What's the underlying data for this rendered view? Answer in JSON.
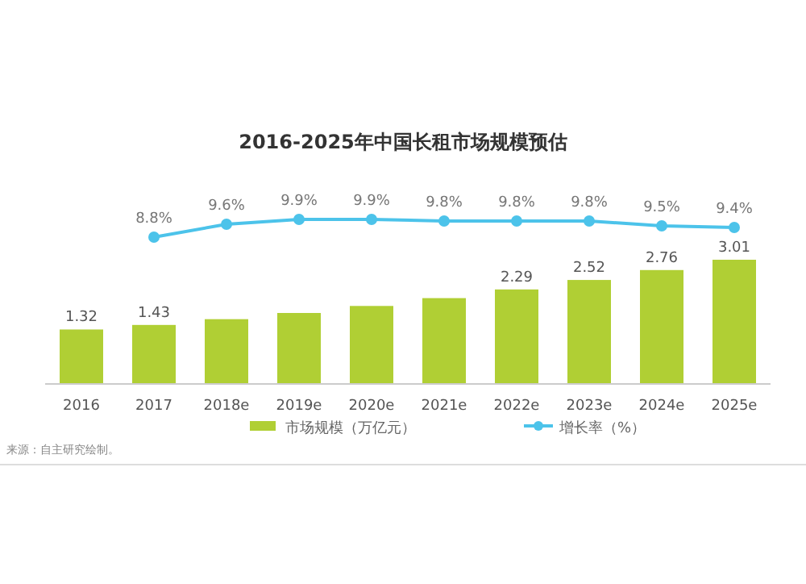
{
  "chart_data": [
    {
      "type": "bar",
      "categories": [
        "2016",
        "2017",
        "2018e",
        "2019e",
        "2020e",
        "2021e",
        "2022e",
        "2023e",
        "2024e",
        "2025e"
      ],
      "series": [
        {
          "name": "市场规模（万亿元）",
          "color": "#b0cf34",
          "values": [
            1.32,
            1.43,
            1.57,
            1.72,
            1.89,
            2.08,
            2.29,
            2.52,
            2.76,
            3.01
          ],
          "value_labels": [
            "1.32",
            "1.43",
            null,
            null,
            null,
            null,
            "2.29",
            "2.52",
            "2.76",
            "3.01"
          ]
        }
      ],
      "legend": "bottom",
      "annotations": [
        "来源：自主研究绘制。"
      ]
    },
    {
      "type": "line",
      "title": "2016-2025年中国长租市场规模预估",
      "categories": [
        null,
        null,
        null,
        null,
        null,
        null,
        null,
        null,
        null,
        null
      ],
      "series": [
        {
          "name": "增长率（%）",
          "color": "#4cc3ea",
          "values": [
            null,
            8.8,
            9.6,
            9.9,
            9.9,
            9.8,
            9.8,
            9.8,
            9.5,
            9.4
          ],
          "value_labels": [
            null,
            "8.8%",
            "9.6%",
            "9.9%",
            "9.9%",
            "9.8%",
            "9.8%",
            "9.8%",
            "9.5%",
            "9.4%"
          ]
        }
      ],
      "marker": "circle",
      "legend": "bottom"
    }
  ]
}
